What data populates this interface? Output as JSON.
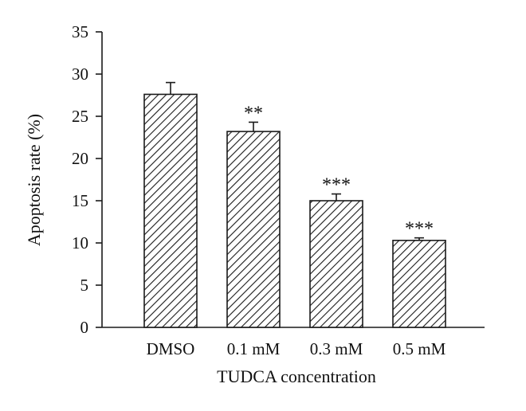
{
  "chart_data": {
    "type": "bar",
    "categories": [
      "DMSO",
      "0.1 mM",
      "0.3 mM",
      "0.5 mM"
    ],
    "values": [
      27.6,
      23.2,
      15.0,
      10.3
    ],
    "errors": [
      1.4,
      1.1,
      0.8,
      0.3
    ],
    "significance": [
      "",
      "**",
      "***",
      "***"
    ],
    "xlabel": "TUDCA concentration",
    "ylabel": "Apoptosis rate (%)",
    "ylim": [
      0,
      35
    ],
    "yticks": [
      0,
      5,
      10,
      15,
      20,
      25,
      30,
      35
    ],
    "grid": false,
    "bar_fill": "hatched",
    "colors": {
      "bar_stroke": "#1a1a1a",
      "axis": "#1a1a1a",
      "text": "#111111"
    }
  }
}
